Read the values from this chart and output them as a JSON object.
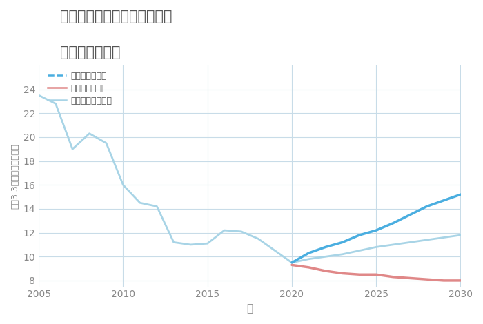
{
  "title_line1": "福岡県築上郡上毛町西友枝の",
  "title_line2": "土地の価格推移",
  "xlabel": "年",
  "ylabel": "坪（3.3㎡）単価（万円）",
  "xlim": [
    2005,
    2030
  ],
  "ylim": [
    7.5,
    26
  ],
  "yticks": [
    8,
    10,
    12,
    14,
    16,
    18,
    20,
    22,
    24
  ],
  "xticks": [
    2005,
    2010,
    2015,
    2020,
    2025,
    2030
  ],
  "good_scenario": {
    "label": "グッドシナリオ",
    "color": "#4aaee0",
    "linewidth": 2.5,
    "x": [
      2020,
      2021,
      2022,
      2023,
      2024,
      2025,
      2026,
      2027,
      2028,
      2029,
      2030
    ],
    "y": [
      9.5,
      10.3,
      10.8,
      11.2,
      11.8,
      12.2,
      12.8,
      13.5,
      14.2,
      14.7,
      15.2
    ]
  },
  "bad_scenario": {
    "label": "バッドシナリオ",
    "color": "#e08888",
    "linewidth": 2.5,
    "x": [
      2020,
      2021,
      2022,
      2023,
      2024,
      2025,
      2026,
      2027,
      2028,
      2029,
      2030
    ],
    "y": [
      9.3,
      9.1,
      8.8,
      8.6,
      8.5,
      8.5,
      8.3,
      8.2,
      8.1,
      8.0,
      8.0
    ]
  },
  "normal_scenario": {
    "label": "ノーマルシナリオ",
    "color": "#a8d4e6",
    "linewidth": 2.0,
    "x": [
      2005,
      2006,
      2007,
      2008,
      2009,
      2010,
      2011,
      2012,
      2013,
      2014,
      2015,
      2016,
      2017,
      2018,
      2019,
      2020,
      2021,
      2022,
      2023,
      2024,
      2025,
      2026,
      2027,
      2028,
      2029,
      2030
    ],
    "y": [
      23.5,
      22.8,
      19.0,
      20.3,
      19.5,
      16.0,
      14.5,
      14.2,
      11.2,
      11.0,
      11.1,
      12.2,
      12.1,
      11.5,
      10.5,
      9.5,
      9.8,
      10.0,
      10.2,
      10.5,
      10.8,
      11.0,
      11.2,
      11.4,
      11.6,
      11.8
    ]
  },
  "background_color": "#ffffff",
  "grid_color": "#c8dce8",
  "title_color": "#555555",
  "tick_color": "#888888",
  "legend_color": "#555555"
}
